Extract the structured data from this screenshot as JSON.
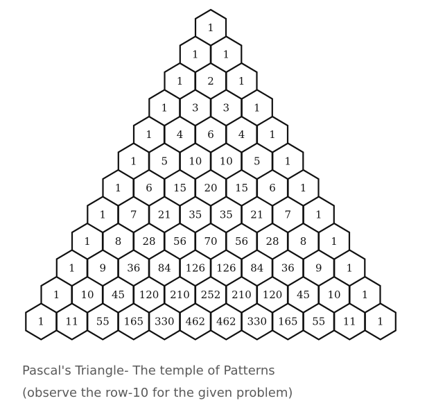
{
  "triangle": {
    "rows": [
      [
        1
      ],
      [
        1,
        1
      ],
      [
        1,
        2,
        1
      ],
      [
        1,
        3,
        3,
        1
      ],
      [
        1,
        4,
        6,
        4,
        1
      ],
      [
        1,
        5,
        10,
        10,
        5,
        1
      ],
      [
        1,
        6,
        15,
        20,
        15,
        6,
        1
      ],
      [
        1,
        7,
        21,
        35,
        35,
        21,
        7,
        1
      ],
      [
        1,
        8,
        28,
        56,
        70,
        56,
        28,
        8,
        1
      ],
      [
        1,
        9,
        36,
        84,
        126,
        126,
        84,
        36,
        9,
        1
      ],
      [
        1,
        10,
        45,
        120,
        210,
        252,
        210,
        120,
        45,
        10,
        1
      ],
      [
        1,
        11,
        55,
        165,
        330,
        462,
        462,
        330,
        165,
        55,
        11,
        1
      ]
    ],
    "colors": {
      "cell_fill": "#ffffff",
      "cell_stroke": "#111111",
      "number_text": "#111111"
    }
  },
  "caption": {
    "line1": "Pascal's Triangle- The temple of Patterns",
    "line2": "(observe the row-10 for the given problem)",
    "color": "#5a5a5a"
  }
}
